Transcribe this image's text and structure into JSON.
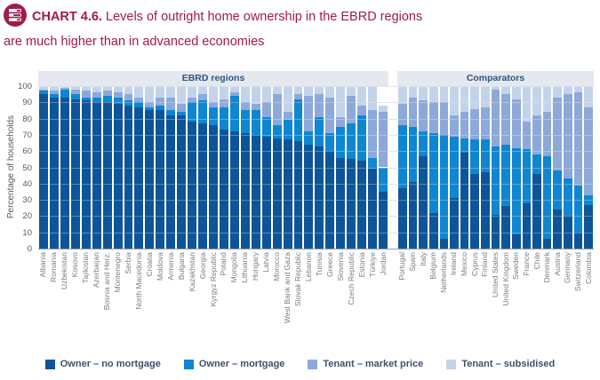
{
  "title": {
    "tag": "CHART 4.6.",
    "line1": "Levels of outright home ownership in the EBRD regions",
    "line2": "are much higher than in advanced economies"
  },
  "colors": {
    "title": "#a01a4e",
    "panel_band_bg": "#e5e8ef",
    "panel_band_text": "#2e567e",
    "gridline": "#d9d9d9",
    "axis": "#9f9f9f",
    "tick_text": "#595959",
    "category_text": "#7c7c7c",
    "legend_text": "#3e5269"
  },
  "chart_data": {
    "type": "bar",
    "stacked": true,
    "title": "CHART 4.6. Levels of outright home ownership in the EBRD regions are much higher than in advanced economies",
    "ylabel": "Percentage of households",
    "ylim": [
      0,
      100
    ],
    "yticks": [
      0,
      10,
      20,
      30,
      40,
      50,
      60,
      70,
      80,
      90,
      100
    ],
    "grid": true,
    "legend_position": "bottom",
    "series_names": [
      "Owner – no mortgage",
      "Owner – mortgage",
      "Tenant – market price",
      "Tenant – subsidised"
    ],
    "series_colors": [
      "#0d5598",
      "#0f86d0",
      "#8ca9d9",
      "#c3d3ea"
    ],
    "panels": [
      {
        "label": "EBRD regions",
        "categories": [
          "Albania",
          "Romania",
          "Uzbekistan",
          "Kosovo",
          "Tajikistan",
          "Azerbaijan",
          "Bosnia and Herz.",
          "Montenegro",
          "Serbia",
          "North Macedonia",
          "Croatia",
          "Moldova",
          "Armenia",
          "Bulgaria",
          "Kazakhstan",
          "Georgia",
          "Kyrgyz Republic",
          "Poland",
          "Mongolia",
          "Lithuania",
          "Hungary",
          "Latvia",
          "Morocco",
          "West Bank and Gaza",
          "Slovak Republic",
          "Lebanon",
          "Tunisia",
          "Greece",
          "Slovenia",
          "Czech Republic",
          "Estonia",
          "Türkiye",
          "Jordan"
        ],
        "series": [
          {
            "name": "Owner – no mortgage",
            "values": [
              95,
              93,
              93,
              92,
              91,
              90,
              90,
              89,
              88,
              87,
              85,
              85,
              82,
              82,
              78,
              77,
              76,
              73,
              72,
              71,
              70,
              69,
              68,
              67,
              66,
              64,
              63,
              60,
              56,
              55,
              54,
              49,
              35
            ]
          },
          {
            "name": "Owner – mortgage",
            "values": [
              2,
              2,
              5,
              3,
              2,
              3,
              4,
              4,
              3,
              3,
              2,
              3,
              3,
              2,
              12,
              14,
              11,
              14,
              22,
              14,
              15,
              12,
              8,
              12,
              26,
              8,
              18,
              11,
              19,
              22,
              28,
              7,
              15
            ]
          },
          {
            "name": "Tenant – market price",
            "values": [
              1,
              2,
              1,
              3,
              4,
              3,
              3,
              3,
              4,
              3,
              3,
              5,
              8,
              5,
              3,
              4,
              3,
              5,
              2,
              5,
              4,
              9,
              19,
              5,
              3,
              22,
              14,
              22,
              6,
              17,
              6,
              29,
              34
            ]
          },
          {
            "name": "Tenant – subsidised",
            "values": [
              2,
              3,
              1,
              2,
              3,
              4,
              3,
              4,
              5,
              7,
              10,
              7,
              7,
              11,
              7,
              5,
              10,
              8,
              4,
              10,
              11,
              10,
              5,
              16,
              5,
              6,
              5,
              7,
              19,
              6,
              12,
              15,
              4
            ]
          }
        ]
      },
      {
        "label": "Comparators",
        "categories": [
          "Portugal",
          "Spain",
          "Italy",
          "Belgium",
          "Netherlands",
          "Ireland",
          "Mexico",
          "Cyprus",
          "Finland",
          "United States",
          "United Kingdom",
          "Sweden",
          "France",
          "Chile",
          "Denmark",
          "Austria",
          "Germany",
          "Switzerland",
          "Colombia"
        ],
        "series": [
          {
            "name": "Owner – no mortgage",
            "values": [
              37,
              41,
              57,
              22,
              6,
              31,
              59,
              46,
              47,
              21,
              26,
              9,
              28,
              46,
              6,
              24,
              20,
              10,
              27
            ]
          },
          {
            "name": "Owner – mortgage",
            "values": [
              39,
              34,
              15,
              49,
              64,
              38,
              9,
              21,
              20,
              42,
              38,
              53,
              33,
              12,
              51,
              24,
              23,
              29,
              6
            ]
          },
          {
            "name": "Tenant – market price",
            "values": [
              13,
              18,
              19,
              19,
              20,
              13,
              16,
              19,
              20,
              35,
              31,
              30,
              17,
              24,
              27,
              45,
              52,
              57,
              54
            ]
          },
          {
            "name": "Tenant – subsidised",
            "values": [
              11,
              7,
              9,
              10,
              10,
              18,
              16,
              14,
              13,
              2,
              5,
              8,
              22,
              18,
              16,
              7,
              5,
              4,
              13
            ]
          }
        ]
      }
    ]
  }
}
